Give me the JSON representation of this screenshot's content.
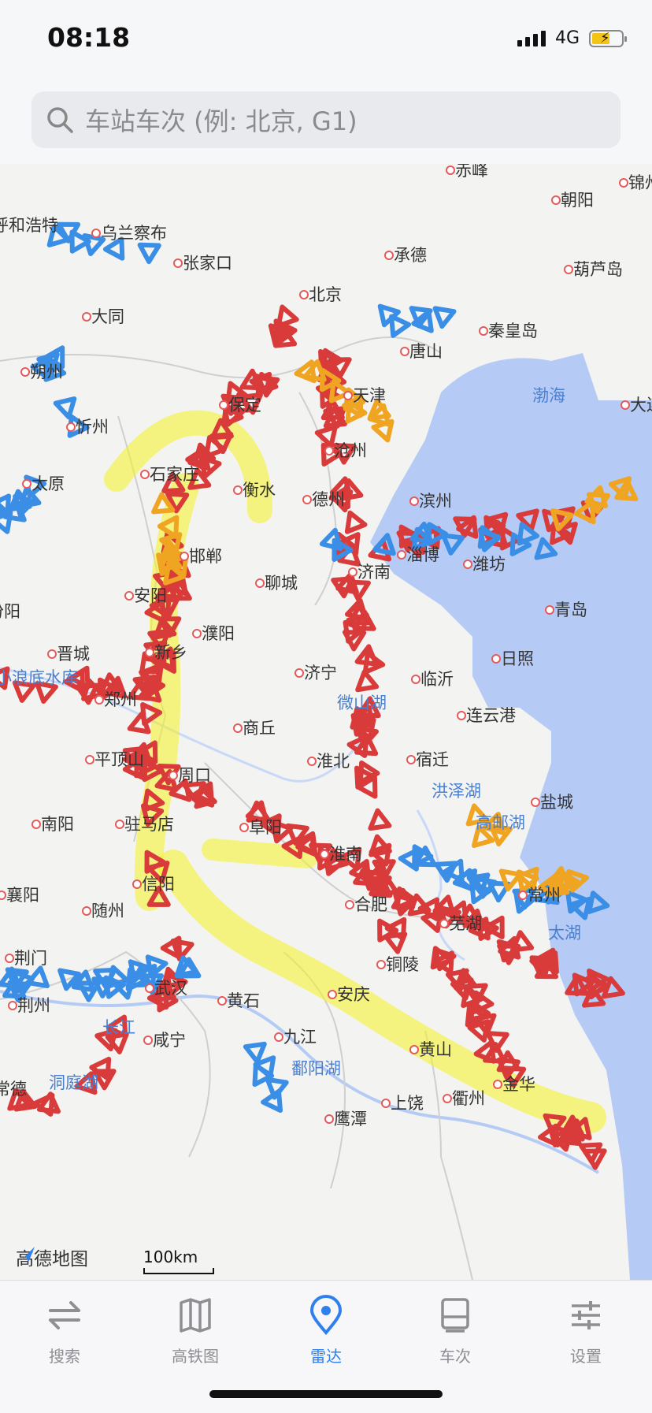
{
  "status": {
    "time": "08:18",
    "network": "4G"
  },
  "search": {
    "placeholder": "车站车次 (例: 北京, G1)"
  },
  "map": {
    "cities": [
      {
        "name": "呼和浩特"
      },
      {
        "name": "乌兰察布"
      },
      {
        "name": "张家口"
      },
      {
        "name": "承德"
      },
      {
        "name": "朝阳"
      },
      {
        "name": "葫芦岛"
      },
      {
        "name": "大同"
      },
      {
        "name": "朔州"
      },
      {
        "name": "北京"
      },
      {
        "name": "秦皇岛"
      },
      {
        "name": "唐山"
      },
      {
        "name": "天津"
      },
      {
        "name": "忻州"
      },
      {
        "name": "太原"
      },
      {
        "name": "石家庄"
      },
      {
        "name": "保定"
      },
      {
        "name": "衡水"
      },
      {
        "name": "沧州"
      },
      {
        "name": "德州"
      },
      {
        "name": "滨州"
      },
      {
        "name": "邯郸"
      },
      {
        "name": "聊城"
      },
      {
        "name": "济南"
      },
      {
        "name": "淄博"
      },
      {
        "name": "潍坊"
      },
      {
        "name": "青岛"
      },
      {
        "name": "日照"
      },
      {
        "name": "安阳"
      },
      {
        "name": "濮阳"
      },
      {
        "name": "新乡"
      },
      {
        "name": "晋城"
      },
      {
        "name": "济宁"
      },
      {
        "name": "临沂"
      },
      {
        "name": "郑州"
      },
      {
        "name": "商丘"
      },
      {
        "name": "连云港"
      },
      {
        "name": "平顶山"
      },
      {
        "name": "周口"
      },
      {
        "name": "淮北"
      },
      {
        "name": "宿迁"
      },
      {
        "name": "盐城"
      },
      {
        "name": "南阳"
      },
      {
        "name": "驻马店"
      },
      {
        "name": "阜阳"
      },
      {
        "name": "淮南"
      },
      {
        "name": "信阳"
      },
      {
        "name": "合肥"
      },
      {
        "name": "芜湖"
      },
      {
        "name": "常州"
      },
      {
        "name": "襄阳"
      },
      {
        "name": "随州"
      },
      {
        "name": "荆门"
      },
      {
        "name": "武汉"
      },
      {
        "name": "黄石"
      },
      {
        "name": "安庆"
      },
      {
        "name": "铜陵"
      },
      {
        "name": "荆州"
      },
      {
        "name": "咸宁"
      },
      {
        "name": "九江"
      },
      {
        "name": "黄山"
      },
      {
        "name": "上饶"
      },
      {
        "name": "衢州"
      },
      {
        "name": "金华"
      },
      {
        "name": "鹰潭"
      },
      {
        "name": "常德"
      },
      {
        "name": "赤峰"
      },
      {
        "name": "锦州"
      },
      {
        "name": "大连"
      },
      {
        "name": "汾阳"
      }
    ],
    "water": [
      {
        "name": "渤海"
      },
      {
        "name": "小浪底水库"
      },
      {
        "name": "微山湖"
      },
      {
        "name": "洪泽湖"
      },
      {
        "name": "高邮湖"
      },
      {
        "name": "太湖"
      },
      {
        "name": "长江"
      },
      {
        "name": "鄱阳湖"
      },
      {
        "name": "洞庭湖"
      }
    ],
    "logo": "高德地图",
    "scale": "100km",
    "colors": {
      "high_speed": "#d93a3a",
      "normal": "#3a8ee6",
      "other": "#f0a522",
      "sea": "#b5cbf5",
      "highlight": "#f5f222"
    }
  },
  "tabs": [
    {
      "label": "搜索",
      "icon": "swap-arrows-icon"
    },
    {
      "label": "高铁图",
      "icon": "map-icon"
    },
    {
      "label": "雷达",
      "icon": "location-pin-icon",
      "active": true
    },
    {
      "label": "车次",
      "icon": "train-icon"
    },
    {
      "label": "设置",
      "icon": "sliders-icon"
    }
  ]
}
